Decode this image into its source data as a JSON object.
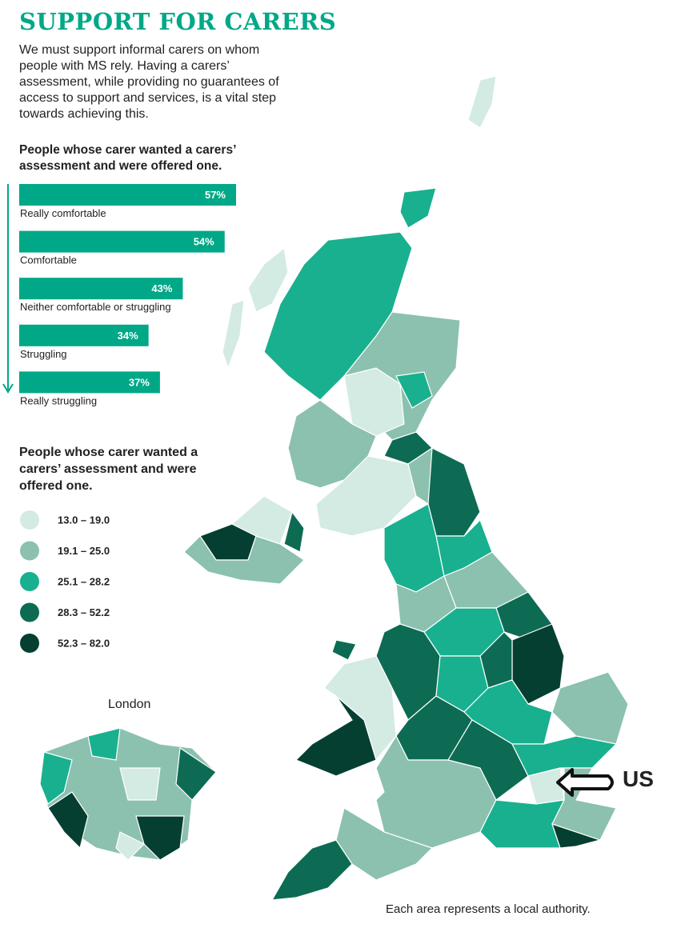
{
  "header": {
    "title": "SUPPORT FOR CARERS",
    "intro": "We must support informal carers on whom people with MS rely. Having a carers’ assessment, while providing no guarantees of access to support and services, is a vital step towards achieving this."
  },
  "chart_data": {
    "type": "bar",
    "title": "People whose carer wanted a carers’ assessment and were offered one.",
    "categories": [
      "Really comfortable",
      "Comfortable",
      "Neither comfortable or struggling",
      "Struggling",
      "Really struggling"
    ],
    "values": [
      57,
      54,
      43,
      34,
      37
    ],
    "value_labels": [
      "57%",
      "54%",
      "43%",
      "34%",
      "37%"
    ],
    "color": "#00a887"
  },
  "map": {
    "legend_title": "People whose carer wanted a carers’ assessment and were offered one.",
    "legend": [
      {
        "label": "13.0 – 19.0",
        "color": "#d3ebe2"
      },
      {
        "label": "19.1 – 25.0",
        "color": "#8bc1ae"
      },
      {
        "label": "25.1 – 28.2",
        "color": "#19b08f"
      },
      {
        "label": "28.3 – 52.2",
        "color": "#0d6b54"
      },
      {
        "label": "52.3 – 82.0",
        "color": "#053f31"
      }
    ],
    "inset_label": "London",
    "annotation": "US",
    "note": "Each area represents a local authority."
  }
}
